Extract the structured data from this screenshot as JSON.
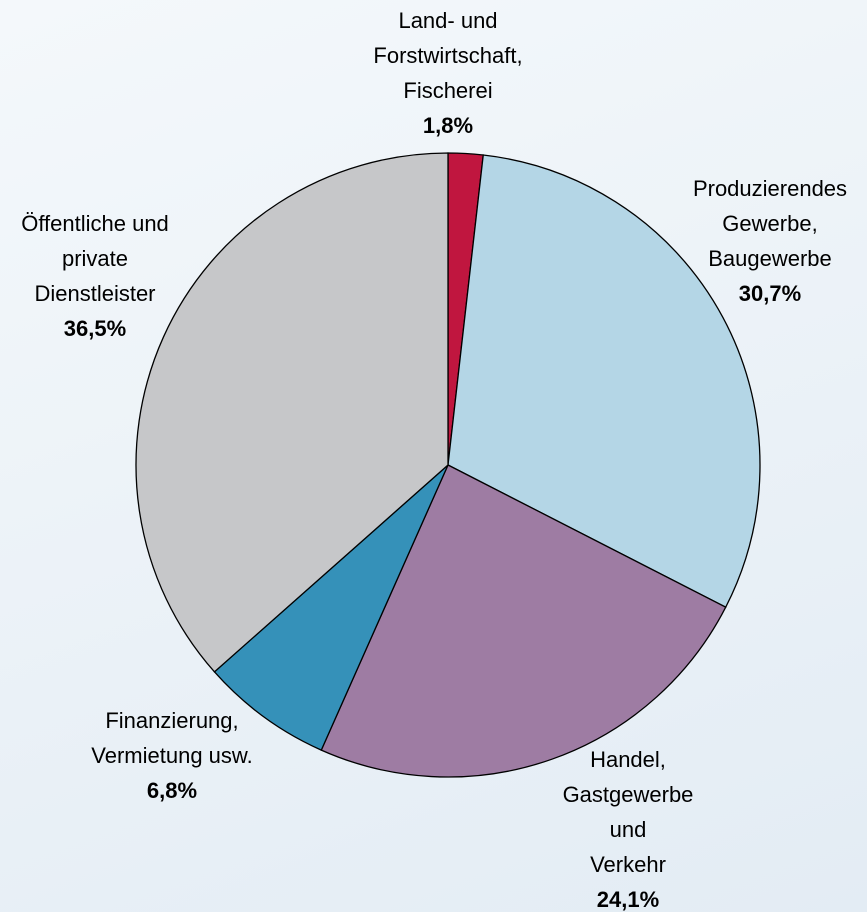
{
  "chart_data": {
    "type": "pie",
    "categories": [
      [
        "Land- und",
        "Forstwirtschaft,",
        "Fischerei"
      ],
      [
        "Produzierendes",
        "Gewerbe,",
        "Baugewerbe"
      ],
      [
        "Handel,",
        "Gastgewerbe",
        "und",
        "Verkehr"
      ],
      [
        "Finanzierung,",
        "Vermietung usw."
      ],
      [
        "Öffentliche und",
        "private",
        "Dienstleister"
      ]
    ],
    "values": [
      1.8,
      30.7,
      24.1,
      6.8,
      36.5
    ],
    "value_labels": [
      "1,8%",
      "30,7%",
      "24,1%",
      "6,8%",
      "36,5%"
    ],
    "colors": [
      "#c0163f",
      "#b4d6e6",
      "#9e7ca3",
      "#3591b9",
      "#c6c7c9"
    ]
  }
}
